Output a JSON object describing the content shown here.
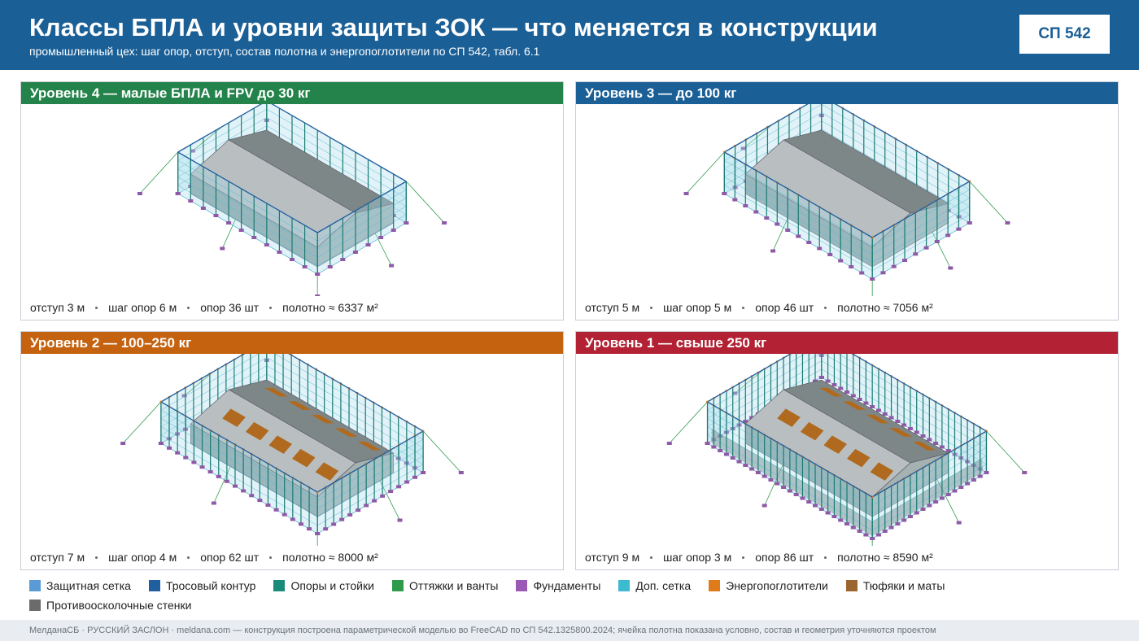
{
  "header": {
    "title": "Классы БПЛА и уровни защиты ЗОК — что меняется в конструкции",
    "subtitle": "промышленный цех: шаг опор, отступ, состав полотна и энергопоглотители по СП 542, табл. 6.1",
    "badge": "СП 542"
  },
  "panels": [
    {
      "title": "Уровень 4 — малые БПЛА и FPV до 30 кг",
      "color": "#23834a",
      "stats": [
        "отступ 3 м",
        "шаг опор 6 м",
        "опор 36 шт",
        "полотно ≈ 6337 м²"
      ]
    },
    {
      "title": "Уровень 3 — до 100 кг",
      "color": "#1a5f96",
      "stats": [
        "отступ 5 м",
        "шаг опор 5 м",
        "опор 46 шт",
        "полотно ≈ 7056 м²"
      ]
    },
    {
      "title": "Уровень 2 — 100–250 кг",
      "color": "#c5620f",
      "stats": [
        "отступ 7 м",
        "шаг опор 4 м",
        "опор 62 шт",
        "полотно ≈ 8000 м²"
      ]
    },
    {
      "title": "Уровень 1 — свыше 250 кг",
      "color": "#b22234",
      "stats": [
        "отступ 9 м",
        "шаг опор 3 м",
        "опор 86 шт",
        "полотно ≈ 8590 м²"
      ]
    }
  ],
  "legend": [
    {
      "label": "Защитная сетка",
      "color": "#5b9bd5"
    },
    {
      "label": "Тросовый контур",
      "color": "#1f5fa0"
    },
    {
      "label": "Опоры и стойки",
      "color": "#1a8a7a"
    },
    {
      "label": "Оттяжки и ванты",
      "color": "#2e9a4a"
    },
    {
      "label": "Фундаменты",
      "color": "#9b59b6"
    },
    {
      "label": "Доп. сетка",
      "color": "#3bbad0"
    },
    {
      "label": "Энергопоглотители",
      "color": "#e07b1a"
    },
    {
      "label": "Тюфяки и маты",
      "color": "#9a6630"
    },
    {
      "label": "Противоосколочные стенки",
      "color": "#6b6b6b"
    }
  ],
  "footer": "МелданаСБ · РУССКИЙ ЗАСЛОН · meldana.com — конструкция построена параметрической моделью во FreeCAD по СП 542.1325800.2024; ячейка полотна показана условно, состав и геометрия уточняются проектом"
}
